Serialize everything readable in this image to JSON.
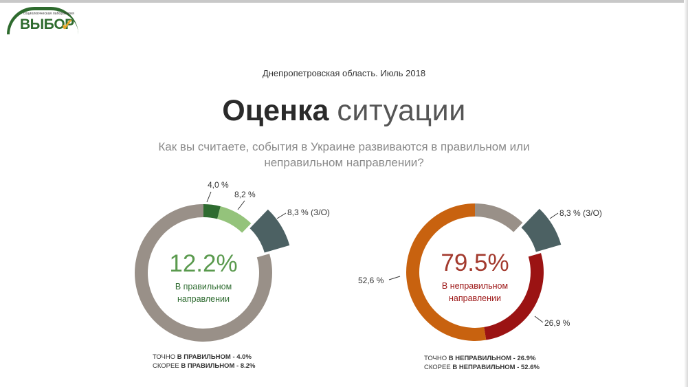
{
  "logo": {
    "text": "ВЫБОР",
    "subtext": "социологическая лаборатория",
    "check": "✓"
  },
  "header": {
    "region": "Днепропетровская область. Июль 2018",
    "title_bold": "Оценка",
    "title_light": "ситуации",
    "question_line1": "Как вы считаете, события в Украине развиваются в правильном или",
    "question_line2": "неправильном направлении?"
  },
  "chart_data": [
    {
      "type": "pie",
      "variant": "donut",
      "slices": [
        {
          "label": "4,0 %",
          "value": 4.0,
          "color": "#2e6b30"
        },
        {
          "label": "8,2 %",
          "value": 8.2,
          "color": "#94c37b"
        },
        {
          "label": "8,3 % (З/О)",
          "value": 8.3,
          "color": "#4c6163",
          "exploded": true
        },
        {
          "value": 79.5,
          "color": "#999088"
        }
      ],
      "center_value": "12.2%",
      "center_label_line1": "В правильном",
      "center_label_line2": "направлении",
      "center_color": "#5a9a4e",
      "label_color": "#2e6b30",
      "legend": [
        {
          "normal": "ТОЧНО ",
          "bold": "В ПРАВИЛЬНОМ - 4.0%"
        },
        {
          "normal": "СКОРЕЕ ",
          "bold": "В ПРАВИЛЬНОМ - 8.2%"
        }
      ]
    },
    {
      "type": "pie",
      "variant": "donut",
      "slices": [
        {
          "value": 12.2,
          "color": "#999088"
        },
        {
          "label": "8,3 % (З/О)",
          "value": 8.3,
          "color": "#4c6163",
          "exploded": true
        },
        {
          "label": "26,9 %",
          "value": 26.9,
          "color": "#9b1313"
        },
        {
          "label": "52,6 %",
          "value": 52.6,
          "color": "#c8620f"
        }
      ],
      "center_value": "79.5%",
      "center_label_line1": "В неправильном",
      "center_label_line2": "направлении",
      "center_color": "#a33a2e",
      "label_color": "#9b1313",
      "legend": [
        {
          "normal": "ТОЧНО ",
          "bold": "В НЕПРАВИЛЬНОМ - 26.9%"
        },
        {
          "normal": "СКОРЕЕ ",
          "bold": "В НЕПРАВИЛЬНОМ - 52.6%"
        }
      ]
    }
  ]
}
